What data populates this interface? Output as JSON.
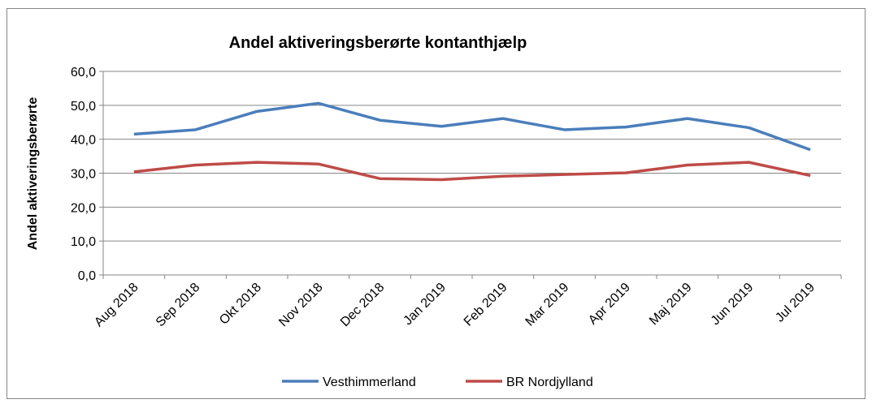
{
  "chart_data": {
    "type": "line",
    "title": "Andel aktiveringsberørte kontanthjælp",
    "y_label": "Andel aktiveringsberørte",
    "categories": [
      "Aug 2018",
      "Sep 2018",
      "Okt 2018",
      "Nov 2018",
      "Dec 2018",
      "Jan 2019",
      "Feb 2019",
      "Mar 2019",
      "Apr 2019",
      "Maj 2019",
      "Jun 2019",
      "Jul 2019"
    ],
    "series": [
      {
        "name": "Vesthimmerland",
        "color": "#4a7ebb",
        "values": [
          41.5,
          42.8,
          48.2,
          50.6,
          45.6,
          43.8,
          46.1,
          42.8,
          43.6,
          46.1,
          43.4,
          36.9
        ]
      },
      {
        "name": "BR Nordjylland",
        "color": "#be4b48",
        "values": [
          30.4,
          32.4,
          33.2,
          32.7,
          28.4,
          28.1,
          29.1,
          29.6,
          30.1,
          32.4,
          33.2,
          29.3
        ]
      }
    ],
    "ylim": [
      0,
      60
    ],
    "yticks": [
      {
        "value": 0,
        "label": "0,0"
      },
      {
        "value": 10,
        "label": "10,0"
      },
      {
        "value": 20,
        "label": "20,0"
      },
      {
        "value": 30,
        "label": "30,0"
      },
      {
        "value": 40,
        "label": "40,0"
      },
      {
        "value": 50,
        "label": "50,0"
      },
      {
        "value": 60,
        "label": "60,0"
      }
    ],
    "grid": true,
    "legend": "bottom"
  }
}
